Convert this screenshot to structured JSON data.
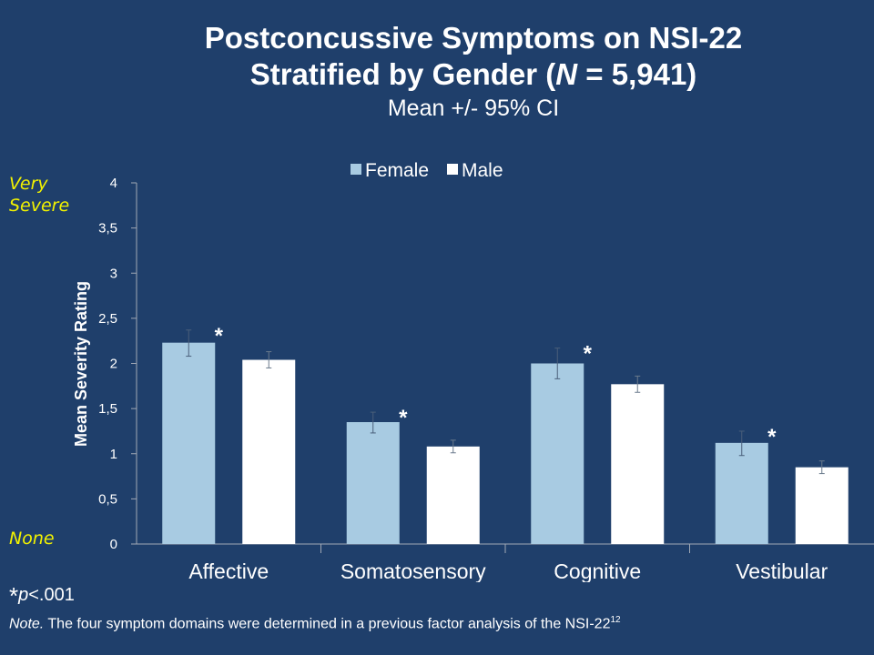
{
  "title": {
    "line1": "Postconcussive Symptoms on NSI-22",
    "line2_pre": "Stratified by Gender (",
    "line2_italic": "N",
    "line2_post": " = 5,941)",
    "subtitle": "Mean +/- 95% CI"
  },
  "side_labels": {
    "top": [
      "Very",
      "Severe"
    ],
    "bottom": "None"
  },
  "footnotes": {
    "star": "*",
    "p": "p",
    "threshold": "<.001",
    "note_lead": "Note.",
    "note_text": " The four symptom domains were determined in a previous factor analysis of the NSI-22",
    "note_sup": "12"
  },
  "colors": {
    "background": "#1f3f6b",
    "female": "#a8cbe2",
    "male": "#ffffff",
    "highlight": "#f2f200"
  },
  "chart_data": {
    "type": "bar",
    "title": "",
    "xlabel": "",
    "ylabel": "Mean Severity Rating",
    "ylim": [
      0,
      4
    ],
    "yticks": [
      "0",
      "0,5",
      "1",
      "1,5",
      "2",
      "2,5",
      "3",
      "3,5",
      "4"
    ],
    "categories": [
      "Affective",
      "Somatosensory",
      "Cognitive",
      "Vestibular"
    ],
    "series": [
      {
        "name": "Female",
        "color": "#a8cbe2",
        "values": [
          2.23,
          1.35,
          2.0,
          1.12
        ],
        "ci_low": [
          2.08,
          1.23,
          1.83,
          0.98
        ],
        "ci_high": [
          2.37,
          1.46,
          2.17,
          1.25
        ]
      },
      {
        "name": "Male",
        "color": "#ffffff",
        "values": [
          2.04,
          1.08,
          1.77,
          0.85
        ],
        "ci_low": [
          1.95,
          1.01,
          1.68,
          0.78
        ],
        "ci_high": [
          2.13,
          1.15,
          1.86,
          0.92
        ]
      }
    ],
    "significance": [
      "*",
      "*",
      "*",
      "*"
    ],
    "legend_position": "top-center",
    "grid": false
  }
}
